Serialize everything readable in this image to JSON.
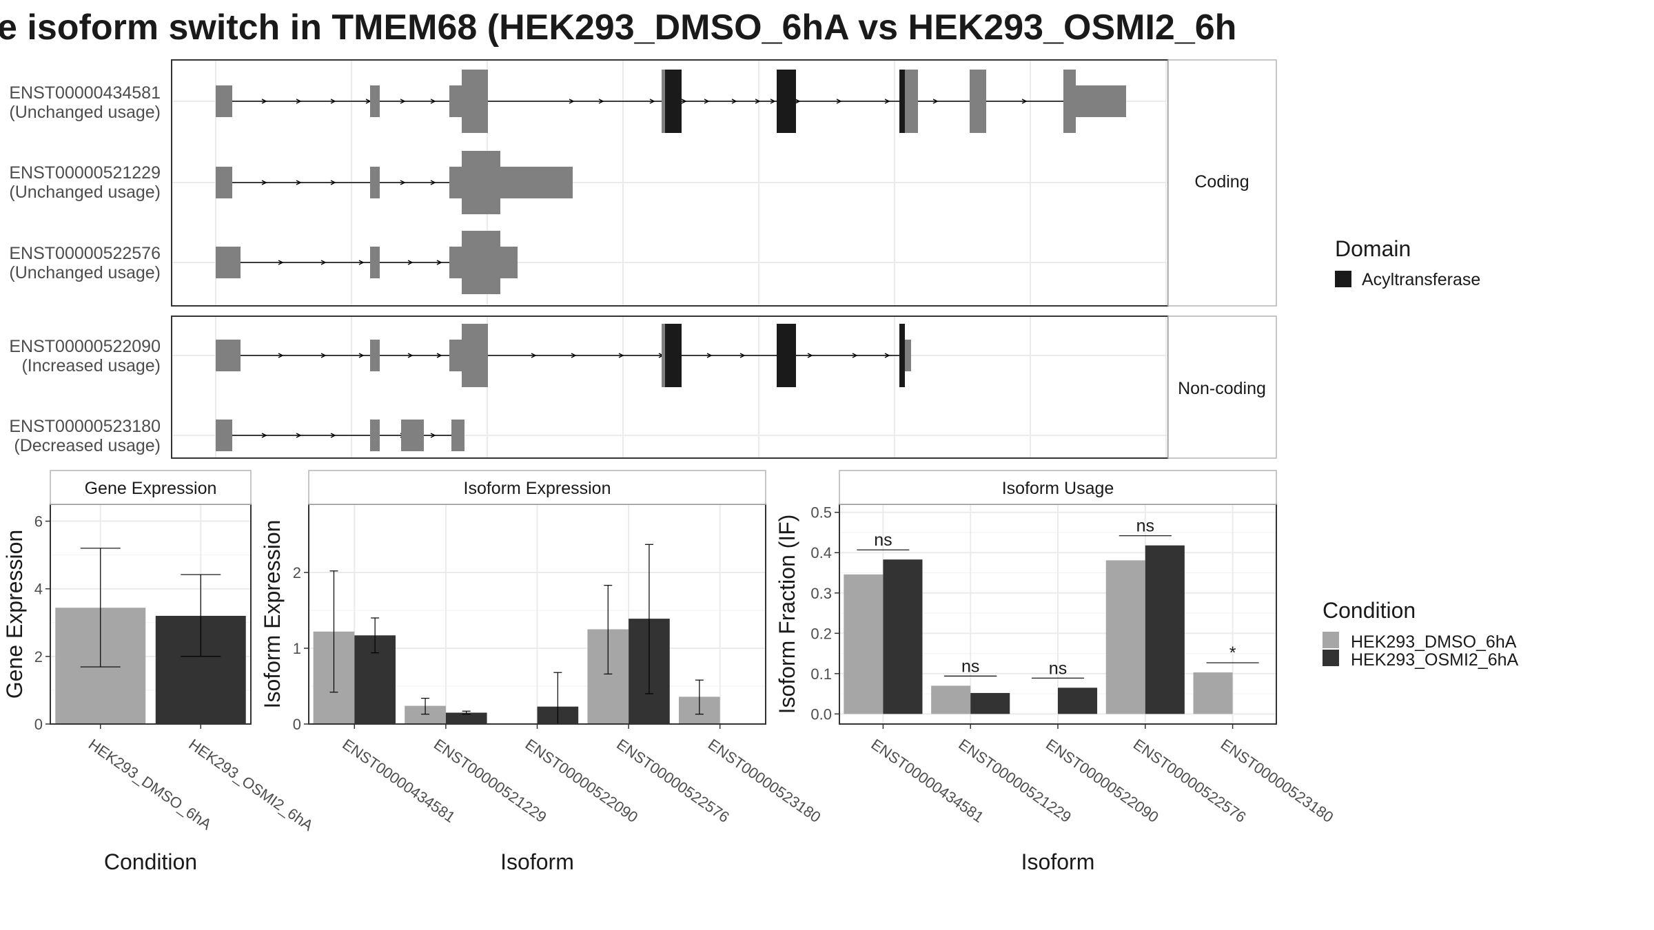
{
  "title": "e isoform switch in TMEM68 (HEK293_DMSO_6hA vs HEK293_OSMI2_6h",
  "colors": {
    "exon": "#808080",
    "domain": "#1a1a1a",
    "dmso": "#a6a6a6",
    "osmi": "#333333",
    "panel_border": "#333333",
    "strip_fill": "#ffffff",
    "grid": "#ebebeb"
  },
  "transcript_panels": [
    {
      "strip": "Coding",
      "transcripts": [
        {
          "id": "ENST00000434581",
          "usage": "(Unchanged usage)"
        },
        {
          "id": "ENST00000521229",
          "usage": "(Unchanged usage)"
        },
        {
          "id": "ENST00000522576",
          "usage": "(Unchanged usage)"
        }
      ]
    },
    {
      "strip": "Non-coding",
      "transcripts": [
        {
          "id": "ENST00000522090",
          "usage": "(Increased usage)"
        },
        {
          "id": "ENST00000523180",
          "usage": "(Decreased usage)"
        }
      ]
    }
  ],
  "domain_legend": {
    "title": "Domain",
    "items": [
      "Acyltransferase"
    ]
  },
  "condition_legend": {
    "title": "Condition",
    "items": [
      "HEK293_DMSO_6hA",
      "HEK293_OSMI2_6hA"
    ]
  },
  "chart_data": [
    {
      "type": "bar",
      "title": "Gene Expression",
      "xlabel": "Condition",
      "ylabel": "Gene Expression",
      "ylim": [
        0,
        6.5
      ],
      "yticks": [
        "0",
        "2",
        "4",
        "6"
      ],
      "categories": [
        "HEK293_DMSO_6hA",
        "HEK293_OSMI2_6hA"
      ],
      "values": [
        3.44,
        3.2
      ],
      "err_low": [
        1.69,
        2.0
      ],
      "err_high": [
        5.2,
        4.42
      ]
    },
    {
      "type": "bar",
      "title": "Isoform Expression",
      "xlabel": "Isoform",
      "ylabel": "Isoform Expression",
      "ylim": [
        0,
        2.9
      ],
      "yticks": [
        "0",
        "1",
        "2"
      ],
      "categories": [
        "ENST00000434581",
        "ENST00000521229",
        "ENST00000522090",
        "ENST00000522576",
        "ENST00000523180"
      ],
      "series": [
        {
          "name": "HEK293_DMSO_6hA",
          "values": [
            1.22,
            0.24,
            0,
            1.25,
            0.36
          ],
          "err_low": [
            0.42,
            0.13,
            0,
            0.66,
            0.13
          ],
          "err_high": [
            2.02,
            0.34,
            0,
            1.83,
            0.58
          ]
        },
        {
          "name": "HEK293_OSMI2_6hA",
          "values": [
            1.17,
            0.15,
            0.23,
            1.39,
            0
          ],
          "err_low": [
            0.94,
            0.13,
            0,
            0.4,
            0
          ],
          "err_high": [
            1.4,
            0.17,
            0.68,
            2.37,
            0
          ]
        }
      ]
    },
    {
      "type": "bar",
      "title": "Isoform Usage",
      "xlabel": "Isoform",
      "ylabel": "Isoform Fraction (IF)",
      "ylim": [
        -0.025,
        0.52
      ],
      "yticks": [
        "0.0",
        "0.1",
        "0.2",
        "0.3",
        "0.4",
        "0.5"
      ],
      "categories": [
        "ENST00000434581",
        "ENST00000521229",
        "ENST00000522090",
        "ENST00000522576",
        "ENST00000523180"
      ],
      "series": [
        {
          "name": "HEK293_DMSO_6hA",
          "values": [
            0.346,
            0.07,
            0,
            0.381,
            0.103
          ]
        },
        {
          "name": "HEK293_OSMI2_6hA",
          "values": [
            0.383,
            0.052,
            0.065,
            0.418,
            0
          ]
        }
      ],
      "significance": [
        "ns",
        "ns",
        "ns",
        "ns",
        "*"
      ]
    }
  ]
}
